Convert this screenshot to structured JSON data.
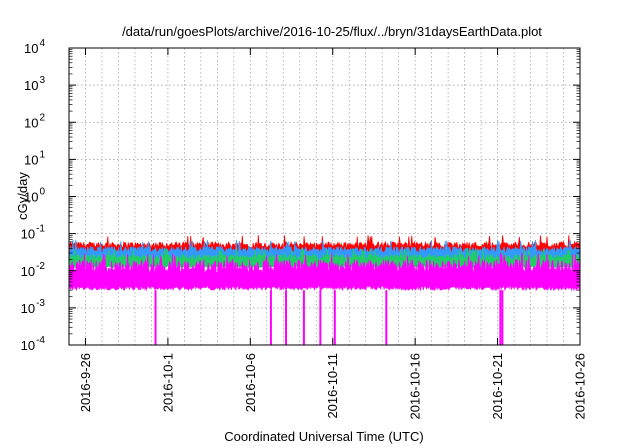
{
  "chart_data": {
    "type": "area",
    "title": "/data/run/goesPlots/archive/2016-10-25/flux/../bryn/31daysEarthData.plot",
    "xlabel": "Coordinated Universal Time (UTC)",
    "ylabel": "cGy/day",
    "yscale": "log",
    "ylim": [
      0.0001,
      10000
    ],
    "xlim": [
      "2016-09-25",
      "2016-10-26"
    ],
    "grid": true,
    "y_ticks": [
      {
        "value": 0.0001,
        "base": "10",
        "exp": "-4"
      },
      {
        "value": 0.001,
        "base": "10",
        "exp": "-3"
      },
      {
        "value": 0.01,
        "base": "10",
        "exp": "-2"
      },
      {
        "value": 0.1,
        "base": "10",
        "exp": "-1"
      },
      {
        "value": 1,
        "base": "10",
        "exp": "0"
      },
      {
        "value": 10,
        "base": "10",
        "exp": "1"
      },
      {
        "value": 100,
        "base": "10",
        "exp": "2"
      },
      {
        "value": 1000,
        "base": "10",
        "exp": "3"
      },
      {
        "value": 10000,
        "base": "10",
        "exp": "4"
      }
    ],
    "x_ticks": [
      {
        "value": "2016-09-26",
        "label": "2016-9-26"
      },
      {
        "value": "2016-10-01",
        "label": "2016-10-1"
      },
      {
        "value": "2016-10-06",
        "label": "2016-10-6"
      },
      {
        "value": "2016-10-11",
        "label": "2016-10-11"
      },
      {
        "value": "2016-10-16",
        "label": "2016-10-16"
      },
      {
        "value": "2016-10-21",
        "label": "2016-10-21"
      },
      {
        "value": "2016-10-26",
        "label": "2016-10-26"
      }
    ],
    "series": [
      {
        "color": "#ff0000",
        "typical_range": [
          0.025,
          0.06
        ],
        "peak": 0.08
      },
      {
        "color": "#3399ff",
        "typical_range": [
          0.018,
          0.045
        ],
        "peak": 0.06
      },
      {
        "color": "#22cc66",
        "typical_range": [
          0.012,
          0.028
        ],
        "peak": 0.035
      },
      {
        "color": "#ff00ff",
        "typical_range": [
          0.003,
          0.02
        ],
        "peak": 0.025,
        "dropouts": [
          "2016-09-30T06:00",
          "2016-10-07T06:00",
          "2016-10-08T04:00",
          "2016-10-09T06:00",
          "2016-10-10T06:00",
          "2016-10-11T03:00",
          "2016-10-14T06:00",
          "2016-10-21T04:00",
          "2016-10-21T07:00"
        ]
      }
    ]
  }
}
